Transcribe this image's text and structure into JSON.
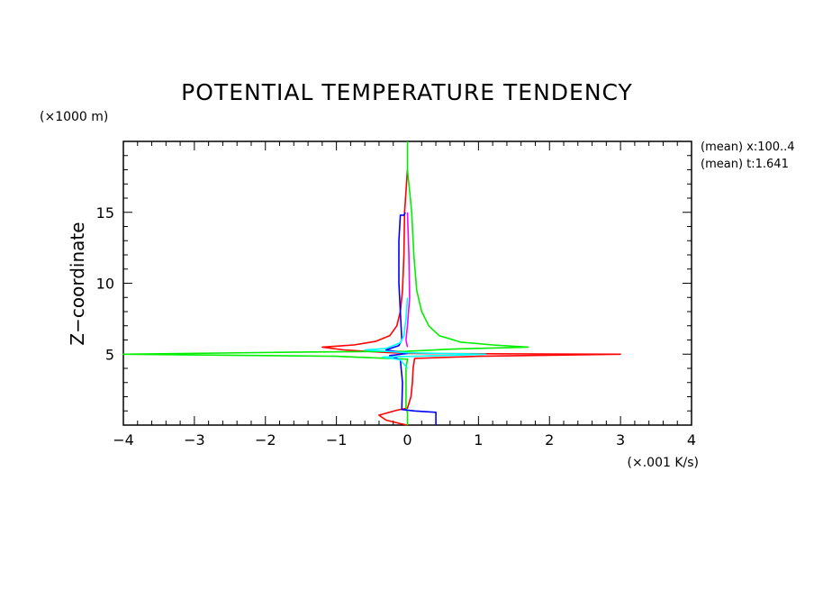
{
  "chart_data": {
    "type": "line",
    "title": "POTENTIAL TEMPERATURE TENDENCY",
    "ylabel": "Z−coordinate",
    "y_units": "(×1000 m)",
    "x_units": "(×.001 K/s)",
    "xlim": [
      -4,
      4
    ],
    "ylim": [
      0,
      20
    ],
    "x_ticks": [
      -4,
      -3,
      -2,
      -1,
      0,
      1,
      2,
      3,
      4
    ],
    "x_tick_labels": [
      "−4",
      "−3",
      "−2",
      "−1",
      "0",
      "1",
      "2",
      "3",
      "4"
    ],
    "y_ticks": [
      5,
      10,
      15
    ],
    "y_tick_labels": [
      "5",
      "10",
      "15"
    ],
    "grid": false,
    "annotations": [
      "(mean) x:100..4",
      "(mean) t:1.641"
    ],
    "series": [
      {
        "color": "#ff0000",
        "points": [
          [
            0.0,
            18.0
          ],
          [
            -0.02,
            16.5
          ],
          [
            -0.04,
            15.0
          ],
          [
            -0.05,
            12.0
          ],
          [
            -0.07,
            9.5
          ],
          [
            -0.1,
            8.0
          ],
          [
            -0.15,
            7.0
          ],
          [
            -0.25,
            6.3
          ],
          [
            -0.45,
            5.9
          ],
          [
            -0.75,
            5.65
          ],
          [
            -1.2,
            5.5
          ],
          [
            -0.9,
            5.3
          ],
          [
            -0.4,
            5.15
          ],
          [
            0.0,
            5.05
          ],
          [
            3.0,
            5.0
          ],
          [
            1.0,
            4.85
          ],
          [
            0.1,
            4.7
          ],
          [
            0.08,
            4.0
          ],
          [
            0.07,
            3.0
          ],
          [
            0.05,
            2.0
          ],
          [
            0.0,
            1.2
          ],
          [
            -0.15,
            1.05
          ],
          [
            -0.4,
            0.7
          ],
          [
            -0.3,
            0.35
          ],
          [
            -0.1,
            0.1
          ],
          [
            0.0,
            0.0
          ]
        ]
      },
      {
        "color": "#00ee00",
        "points": [
          [
            0.0,
            20.0
          ],
          [
            0.0,
            18.0
          ],
          [
            0.03,
            16.5
          ],
          [
            0.06,
            15.0
          ],
          [
            0.09,
            12.0
          ],
          [
            0.13,
            9.5
          ],
          [
            0.2,
            8.0
          ],
          [
            0.3,
            7.0
          ],
          [
            0.45,
            6.3
          ],
          [
            0.75,
            5.85
          ],
          [
            1.2,
            5.65
          ],
          [
            1.7,
            5.5
          ],
          [
            0.6,
            5.35
          ],
          [
            0.0,
            5.2
          ],
          [
            -1.5,
            5.15
          ],
          [
            -4.0,
            5.0
          ],
          [
            -1.0,
            4.85
          ],
          [
            0.0,
            4.65
          ],
          [
            -0.02,
            4.0
          ],
          [
            -0.02,
            2.0
          ],
          [
            -0.02,
            1.2
          ],
          [
            0.0,
            0.9
          ],
          [
            0.0,
            0.0
          ]
        ]
      },
      {
        "color": "#0000ff",
        "points": [
          [
            -0.03,
            15.0
          ],
          [
            -0.05,
            14.8
          ],
          [
            -0.1,
            14.8
          ],
          [
            -0.12,
            13.0
          ],
          [
            -0.12,
            10.0
          ],
          [
            -0.1,
            8.0
          ],
          [
            -0.08,
            6.0
          ],
          [
            -0.12,
            5.6
          ],
          [
            -0.3,
            5.3
          ],
          [
            0.0,
            5.05
          ],
          [
            -0.25,
            4.9
          ],
          [
            -0.1,
            4.6
          ],
          [
            -0.07,
            3.0
          ],
          [
            -0.08,
            1.1
          ],
          [
            0.1,
            1.0
          ],
          [
            0.4,
            0.9
          ],
          [
            0.4,
            0.0
          ]
        ]
      },
      {
        "color": "#00ffff",
        "points": [
          [
            0.0,
            9.0
          ],
          [
            -0.02,
            7.5
          ],
          [
            -0.05,
            6.3
          ],
          [
            -0.1,
            5.8
          ],
          [
            -0.3,
            5.4
          ],
          [
            -0.6,
            5.3
          ],
          [
            0.0,
            5.1
          ],
          [
            1.1,
            5.0
          ],
          [
            0.5,
            4.9
          ],
          [
            -0.35,
            4.8
          ],
          [
            -0.1,
            4.6
          ],
          [
            0.0,
            4.0
          ]
        ]
      },
      {
        "color": "#ff00ff",
        "points": [
          [
            0.0,
            15.0
          ],
          [
            0.02,
            12.0
          ],
          [
            0.03,
            9.0
          ],
          [
            0.0,
            7.0
          ],
          [
            -0.02,
            6.0
          ],
          [
            0.0,
            5.5
          ]
        ]
      }
    ]
  }
}
